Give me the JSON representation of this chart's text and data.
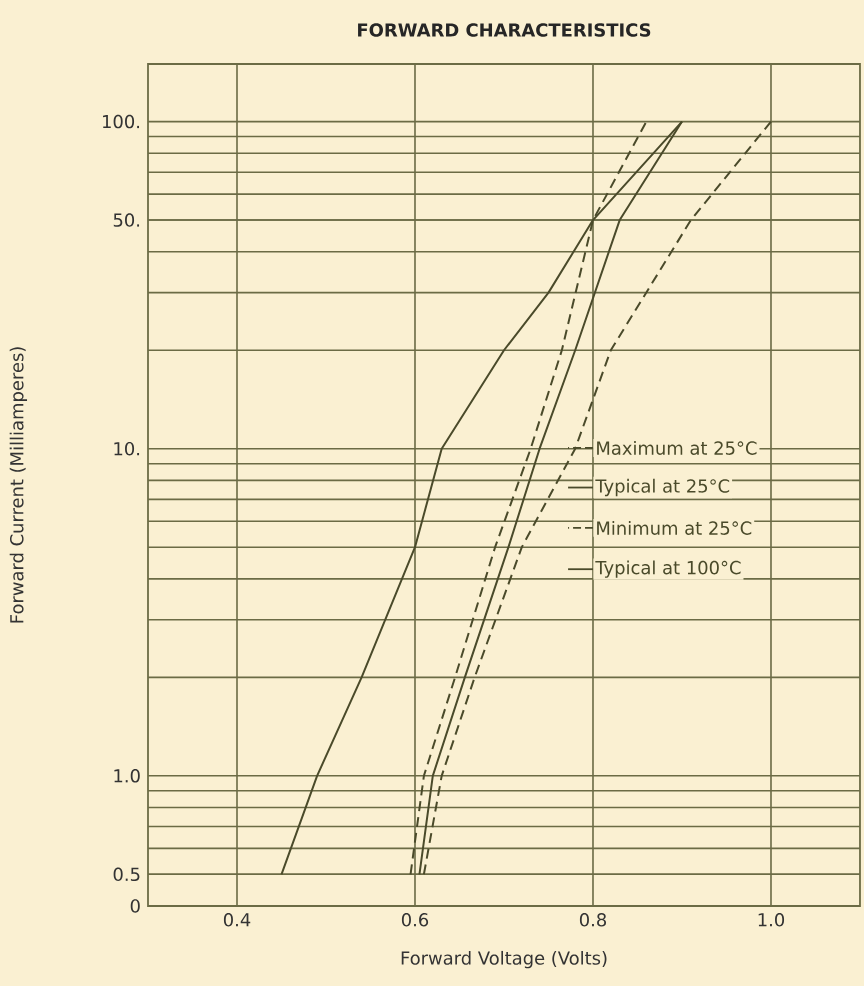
{
  "chart_data": {
    "type": "line",
    "title": "FORWARD CHARACTERISTICS",
    "xlabel": "Forward Voltage    (Volts)",
    "ylabel": "Forward Current    (Milliamperes)",
    "xlim": [
      0.3,
      1.1
    ],
    "ylim": [
      0.4,
      150
    ],
    "log": "y",
    "grid": true,
    "legend": "right",
    "marker": "none",
    "xticks": [
      {
        "value": 0.4,
        "label": "0.4"
      },
      {
        "value": 0.6,
        "label": "0.6"
      },
      {
        "value": 0.8,
        "label": "0.8"
      },
      {
        "value": 1.0,
        "label": "1.0"
      }
    ],
    "yticks": [
      {
        "value": 0.4,
        "label": "0"
      },
      {
        "value": 0.5,
        "label": "0.5"
      },
      {
        "value": 1,
        "label": "1.0"
      },
      {
        "value": 10,
        "label": "10."
      },
      {
        "value": 50,
        "label": "50."
      },
      {
        "value": 100,
        "label": "100."
      }
    ],
    "series": [
      {
        "name": "Maximum at 25°C",
        "color": "#4a4a2a",
        "line_style": "dashed",
        "x": [
          0.61,
          0.63,
          0.667,
          0.72,
          0.78,
          0.82,
          0.91,
          1.0
        ],
        "values": [
          0.5,
          1,
          2,
          5,
          10,
          20,
          50,
          100
        ]
      },
      {
        "name": "Typical at 25°C",
        "color": "#4a4a2a",
        "line_style": "solid",
        "x": [
          0.605,
          0.62,
          0.656,
          0.705,
          0.74,
          0.78,
          0.83,
          0.9
        ],
        "values": [
          0.5,
          1,
          2,
          5,
          10,
          20,
          50,
          100
        ]
      },
      {
        "name": "Minimum at 25°C",
        "color": "#4a4a2a",
        "line_style": "dashed",
        "x": [
          0.595,
          0.61,
          0.645,
          0.69,
          0.73,
          0.765,
          0.8,
          0.86
        ],
        "values": [
          0.5,
          1,
          2,
          5,
          10,
          20,
          50,
          100
        ]
      },
      {
        "name": "Typical at 100°C",
        "color": "#4a4a2a",
        "line_style": "solid",
        "x": [
          0.45,
          0.49,
          0.54,
          0.6,
          0.63,
          0.7,
          0.75,
          0.8,
          0.9
        ],
        "values": [
          0.5,
          1,
          2,
          5,
          10,
          20,
          30,
          50,
          100
        ]
      }
    ]
  }
}
